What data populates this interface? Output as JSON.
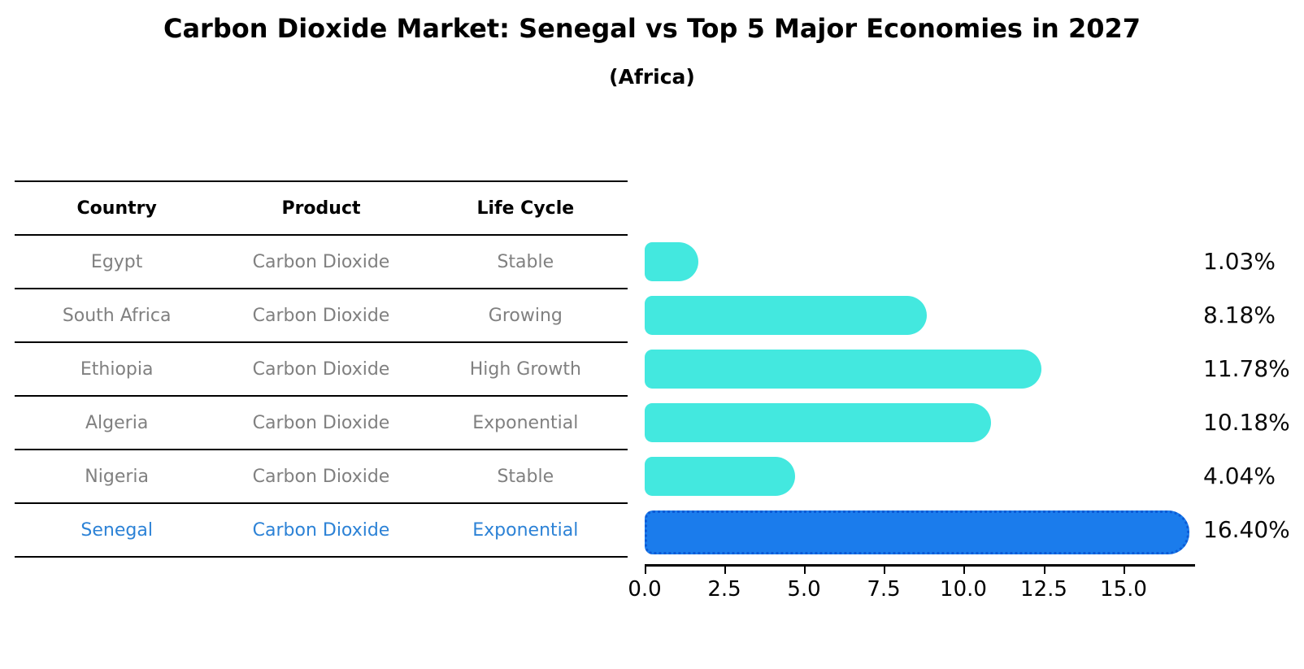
{
  "header": {
    "title": "Carbon Dioxide Market: Senegal vs Top 5 Major Economies in 2027",
    "subtitle": "(Africa)"
  },
  "table": {
    "headers": [
      "Country",
      "Product",
      "Life Cycle"
    ],
    "rows": [
      {
        "country": "Egypt",
        "product": "Carbon Dioxide",
        "life_cycle": "Stable"
      },
      {
        "country": "South Africa",
        "product": "Carbon Dioxide",
        "life_cycle": "Growing"
      },
      {
        "country": "Ethiopia",
        "product": "Carbon Dioxide",
        "life_cycle": "High Growth"
      },
      {
        "country": "Algeria",
        "product": "Carbon Dioxide",
        "life_cycle": "Exponential"
      },
      {
        "country": "Nigeria",
        "product": "Carbon Dioxide",
        "life_cycle": "Stable"
      },
      {
        "country": "Senegal",
        "product": "Carbon Dioxide",
        "life_cycle": "Exponential"
      }
    ]
  },
  "chart_data": {
    "type": "bar",
    "orientation": "horizontal",
    "title": "Carbon Dioxide Market: Senegal vs Top 5 Major Economies in 2027",
    "subtitle": "(Africa)",
    "categories": [
      "Egypt",
      "South Africa",
      "Ethiopia",
      "Algeria",
      "Nigeria",
      "Senegal"
    ],
    "values": [
      1.03,
      8.18,
      11.78,
      10.18,
      4.04,
      16.4
    ],
    "value_labels": [
      "1.03%",
      "8.18%",
      "11.78%",
      "10.18%",
      "4.04%",
      "16.40%"
    ],
    "xlabel": "",
    "ylabel": "",
    "xlim": [
      0,
      17.2
    ],
    "xticks": [
      0,
      2.5,
      5,
      7.5,
      10,
      12.5,
      15
    ],
    "xtick_labels": [
      "0.0",
      "2.5",
      "5.0",
      "7.5",
      "10.0",
      "12.5",
      "15.0"
    ],
    "grid": false,
    "legend": false,
    "bar_color": "#43E8DF",
    "highlight_index": 5,
    "highlight_color": "#1B7CEC",
    "highlight_border_color": "#0C5BD6",
    "highlight_text_color": "#2C82D6"
  }
}
